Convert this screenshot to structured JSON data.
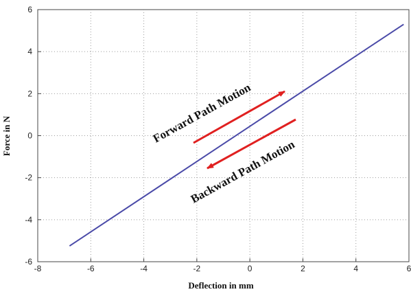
{
  "chart_data": {
    "type": "line",
    "xlabel": "Deflection in mm",
    "ylabel": "Force in N",
    "xlim": [
      -8,
      6
    ],
    "ylim": [
      -6,
      6
    ],
    "xticks": [
      "-8",
      "-6",
      "-4",
      "-2",
      "0",
      "2",
      "4",
      "6"
    ],
    "yticks": [
      "-6",
      "-4",
      "-2",
      "0",
      "2",
      "4",
      "6"
    ],
    "grid": true,
    "series": [
      {
        "x": [
          -6.8,
          5.8
        ],
        "y": [
          -5.25,
          5.3
        ],
        "color": "#4a4aa8"
      }
    ],
    "annotations": [
      {
        "text": "Forward Path Motion",
        "direction": "forward",
        "color": "#e02020"
      },
      {
        "text": "Backward Path Motion",
        "direction": "backward",
        "color": "#e02020"
      }
    ]
  }
}
